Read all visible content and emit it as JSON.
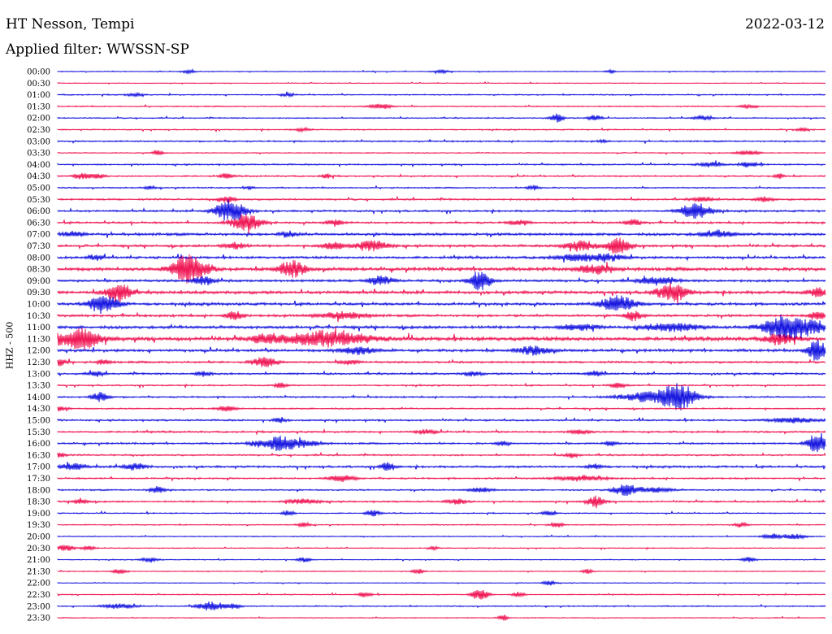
{
  "header": {
    "station": "HT Nesson, Tempi",
    "filter": "Applied filter: WWSSN-SP",
    "date": "2022-03-12"
  },
  "channel_label": "HHZ - 500",
  "chart_data": {
    "type": "line",
    "title": "HT Nesson, Tempi",
    "subtitle": "Applied filter: WWSSN-SP",
    "date": "2022-03-12",
    "ylabel": "HHZ - 500",
    "row_interval_minutes": 30,
    "colors": {
      "even": "#0000dd",
      "odd": "#ee0044"
    },
    "rows": [
      {
        "time": "00:00",
        "noise": 0.6,
        "bursts": [
          [
            0.17,
            2,
            8
          ],
          [
            0.5,
            2,
            8
          ],
          [
            0.72,
            2,
            6
          ]
        ]
      },
      {
        "time": "00:30",
        "noise": 0.5,
        "bursts": []
      },
      {
        "time": "01:00",
        "noise": 0.8,
        "bursts": [
          [
            0.1,
            2,
            10
          ],
          [
            0.3,
            2,
            8
          ]
        ]
      },
      {
        "time": "01:30",
        "noise": 0.8,
        "bursts": [
          [
            0.42,
            3,
            14
          ],
          [
            0.9,
            2,
            10
          ]
        ]
      },
      {
        "time": "02:00",
        "noise": 0.8,
        "bursts": [
          [
            0.65,
            5,
            8
          ],
          [
            0.7,
            4,
            8
          ],
          [
            0.84,
            3,
            10
          ]
        ]
      },
      {
        "time": "02:30",
        "noise": 0.8,
        "bursts": [
          [
            0.32,
            2,
            10
          ],
          [
            0.97,
            2,
            8
          ]
        ]
      },
      {
        "time": "03:00",
        "noise": 1.0,
        "bursts": [
          [
            0.71,
            2,
            6
          ]
        ]
      },
      {
        "time": "03:30",
        "noise": 0.7,
        "bursts": [
          [
            0.13,
            4,
            6
          ],
          [
            0.9,
            3,
            14
          ]
        ]
      },
      {
        "time": "04:00",
        "noise": 1.0,
        "bursts": [
          [
            0.85,
            3,
            14
          ],
          [
            0.9,
            3,
            12
          ]
        ]
      },
      {
        "time": "04:30",
        "noise": 1.0,
        "bursts": [
          [
            0.03,
            4,
            8
          ],
          [
            0.05,
            3,
            10
          ],
          [
            0.22,
            3,
            8
          ],
          [
            0.35,
            3,
            6
          ],
          [
            0.94,
            3,
            6
          ]
        ]
      },
      {
        "time": "05:00",
        "noise": 0.9,
        "bursts": [
          [
            0.12,
            2,
            8
          ],
          [
            0.25,
            2,
            6
          ],
          [
            0.62,
            3,
            8
          ]
        ]
      },
      {
        "time": "05:30",
        "noise": 1.2,
        "bursts": [
          [
            0.22,
            4,
            10
          ],
          [
            0.84,
            3,
            12
          ],
          [
            0.92,
            3,
            10
          ]
        ]
      },
      {
        "time": "06:00",
        "noise": 1.3,
        "bursts": [
          [
            0.225,
            14,
            18
          ],
          [
            0.83,
            11,
            18
          ]
        ]
      },
      {
        "time": "06:30",
        "noise": 1.3,
        "bursts": [
          [
            0.245,
            11,
            18
          ],
          [
            0.36,
            4,
            10
          ],
          [
            0.6,
            3,
            12
          ],
          [
            0.75,
            4,
            10
          ]
        ]
      },
      {
        "time": "07:00",
        "noise": 1.8,
        "bursts": [
          [
            0.02,
            3,
            14
          ],
          [
            0.3,
            3,
            12
          ],
          [
            0.86,
            4,
            20
          ]
        ]
      },
      {
        "time": "07:30",
        "noise": 1.6,
        "bursts": [
          [
            0.23,
            4,
            14
          ],
          [
            0.36,
            4,
            16
          ],
          [
            0.41,
            6,
            20
          ],
          [
            0.68,
            6,
            20
          ],
          [
            0.73,
            10,
            14
          ]
        ]
      },
      {
        "time": "08:00",
        "noise": 1.6,
        "bursts": [
          [
            0.05,
            3,
            10
          ],
          [
            0.68,
            4,
            30
          ],
          [
            0.72,
            3,
            20
          ]
        ]
      },
      {
        "time": "08:30",
        "noise": 2.2,
        "bursts": [
          [
            0.165,
            16,
            16
          ],
          [
            0.185,
            8,
            16
          ],
          [
            0.305,
            10,
            16
          ],
          [
            0.7,
            6,
            20
          ]
        ]
      },
      {
        "time": "09:00",
        "noise": 1.7,
        "bursts": [
          [
            0.19,
            6,
            12
          ],
          [
            0.42,
            5,
            16
          ],
          [
            0.55,
            13,
            12
          ],
          [
            0.78,
            5,
            20
          ]
        ]
      },
      {
        "time": "09:30",
        "noise": 2.0,
        "bursts": [
          [
            0.08,
            12,
            14
          ],
          [
            0.8,
            11,
            18
          ],
          [
            0.99,
            5,
            12
          ]
        ]
      },
      {
        "time": "10:00",
        "noise": 1.8,
        "bursts": [
          [
            0.06,
            12,
            18
          ],
          [
            0.73,
            11,
            20
          ]
        ]
      },
      {
        "time": "10:30",
        "noise": 1.6,
        "bursts": [
          [
            0.23,
            5,
            10
          ],
          [
            0.37,
            4,
            30
          ],
          [
            0.75,
            6,
            10
          ],
          [
            0.99,
            5,
            10
          ]
        ]
      },
      {
        "time": "11:00",
        "noise": 2.0,
        "bursts": [
          [
            0.68,
            4,
            20
          ],
          [
            0.8,
            5,
            30
          ],
          [
            0.95,
            16,
            26
          ],
          [
            0.99,
            5,
            20
          ]
        ]
      },
      {
        "time": "11:30",
        "noise": 2.5,
        "bursts": [
          [
            0.01,
            7,
            40
          ],
          [
            0.035,
            8,
            16
          ],
          [
            0.27,
            5,
            16
          ],
          [
            0.35,
            9,
            50
          ],
          [
            0.94,
            7,
            16
          ]
        ]
      },
      {
        "time": "12:00",
        "noise": 1.8,
        "bursts": [
          [
            0.39,
            5,
            20
          ],
          [
            0.62,
            5,
            20
          ],
          [
            0.99,
            14,
            12
          ]
        ]
      },
      {
        "time": "12:30",
        "noise": 1.4,
        "bursts": [
          [
            0.0,
            5,
            10
          ],
          [
            0.06,
            3,
            8
          ],
          [
            0.27,
            7,
            14
          ],
          [
            0.38,
            3,
            10
          ]
        ]
      },
      {
        "time": "13:00",
        "noise": 1.3,
        "bursts": [
          [
            0.05,
            3,
            8
          ],
          [
            0.19,
            3,
            10
          ],
          [
            0.54,
            3,
            10
          ],
          [
            0.7,
            3,
            10
          ]
        ]
      },
      {
        "time": "13:30",
        "noise": 1.0,
        "bursts": [
          [
            0.29,
            3,
            8
          ],
          [
            0.73,
            3,
            10
          ]
        ]
      },
      {
        "time": "14:00",
        "noise": 1.1,
        "bursts": [
          [
            0.055,
            6,
            10
          ],
          [
            0.78,
            7,
            40
          ],
          [
            0.81,
            14,
            18
          ]
        ]
      },
      {
        "time": "14:30",
        "noise": 1.0,
        "bursts": [
          [
            0.0,
            3,
            10
          ],
          [
            0.22,
            3,
            12
          ]
        ]
      },
      {
        "time": "15:00",
        "noise": 1.2,
        "bursts": [
          [
            0.29,
            3,
            8
          ],
          [
            0.96,
            3,
            30
          ]
        ]
      },
      {
        "time": "15:30",
        "noise": 1.2,
        "bursts": [
          [
            0.48,
            3,
            12
          ],
          [
            0.68,
            3,
            12
          ]
        ]
      },
      {
        "time": "16:00",
        "noise": 1.2,
        "bursts": [
          [
            0.26,
            4,
            10
          ],
          [
            0.29,
            10,
            16
          ],
          [
            0.32,
            4,
            20
          ],
          [
            0.58,
            3,
            8
          ],
          [
            0.72,
            3,
            8
          ],
          [
            0.99,
            14,
            12
          ]
        ]
      },
      {
        "time": "16:30",
        "noise": 1.1,
        "bursts": [
          [
            0.0,
            4,
            8
          ],
          [
            0.67,
            3,
            8
          ]
        ]
      },
      {
        "time": "17:00",
        "noise": 1.4,
        "bursts": [
          [
            0.02,
            4,
            16
          ],
          [
            0.1,
            4,
            14
          ],
          [
            0.43,
            6,
            8
          ],
          [
            0.7,
            3,
            10
          ]
        ]
      },
      {
        "time": "17:30",
        "noise": 1.1,
        "bursts": [
          [
            0.37,
            4,
            16
          ],
          [
            0.68,
            3,
            30
          ]
        ]
      },
      {
        "time": "18:00",
        "noise": 1.0,
        "bursts": [
          [
            0.13,
            4,
            10
          ],
          [
            0.55,
            3,
            14
          ],
          [
            0.74,
            7,
            16
          ],
          [
            0.78,
            3,
            20
          ]
        ]
      },
      {
        "time": "18:30",
        "noise": 1.1,
        "bursts": [
          [
            0.03,
            4,
            8
          ],
          [
            0.32,
            3,
            20
          ],
          [
            0.52,
            3,
            12
          ],
          [
            0.7,
            7,
            10
          ]
        ]
      },
      {
        "time": "19:00",
        "noise": 0.8,
        "bursts": [
          [
            0.3,
            3,
            8
          ],
          [
            0.41,
            4,
            8
          ],
          [
            0.64,
            3,
            8
          ]
        ]
      },
      {
        "time": "19:30",
        "noise": 0.7,
        "bursts": [
          [
            0.32,
            3,
            8
          ],
          [
            0.65,
            3,
            8
          ],
          [
            0.89,
            3,
            8
          ]
        ]
      },
      {
        "time": "20:00",
        "noise": 0.7,
        "bursts": [
          [
            0.93,
            4,
            10
          ],
          [
            0.96,
            3,
            14
          ]
        ]
      },
      {
        "time": "20:30",
        "noise": 0.6,
        "bursts": [
          [
            0.01,
            4,
            10
          ],
          [
            0.04,
            3,
            8
          ],
          [
            0.49,
            2,
            6
          ]
        ]
      },
      {
        "time": "21:00",
        "noise": 0.6,
        "bursts": [
          [
            0.12,
            3,
            10
          ],
          [
            0.32,
            3,
            8
          ],
          [
            0.9,
            3,
            8
          ]
        ]
      },
      {
        "time": "21:30",
        "noise": 0.6,
        "bursts": [
          [
            0.08,
            3,
            8
          ],
          [
            0.47,
            3,
            8
          ],
          [
            0.69,
            3,
            6
          ]
        ]
      },
      {
        "time": "22:00",
        "noise": 0.5,
        "bursts": [
          [
            0.64,
            3,
            8
          ]
        ]
      },
      {
        "time": "22:30",
        "noise": 0.7,
        "bursts": [
          [
            0.4,
            3,
            8
          ],
          [
            0.55,
            7,
            10
          ],
          [
            0.6,
            3,
            8
          ]
        ]
      },
      {
        "time": "23:00",
        "noise": 0.8,
        "bursts": [
          [
            0.08,
            3,
            20
          ],
          [
            0.2,
            6,
            16
          ],
          [
            0.23,
            3,
            8
          ]
        ]
      },
      {
        "time": "23:30",
        "noise": 0.6,
        "bursts": [
          [
            0.58,
            4,
            6
          ]
        ]
      }
    ]
  }
}
